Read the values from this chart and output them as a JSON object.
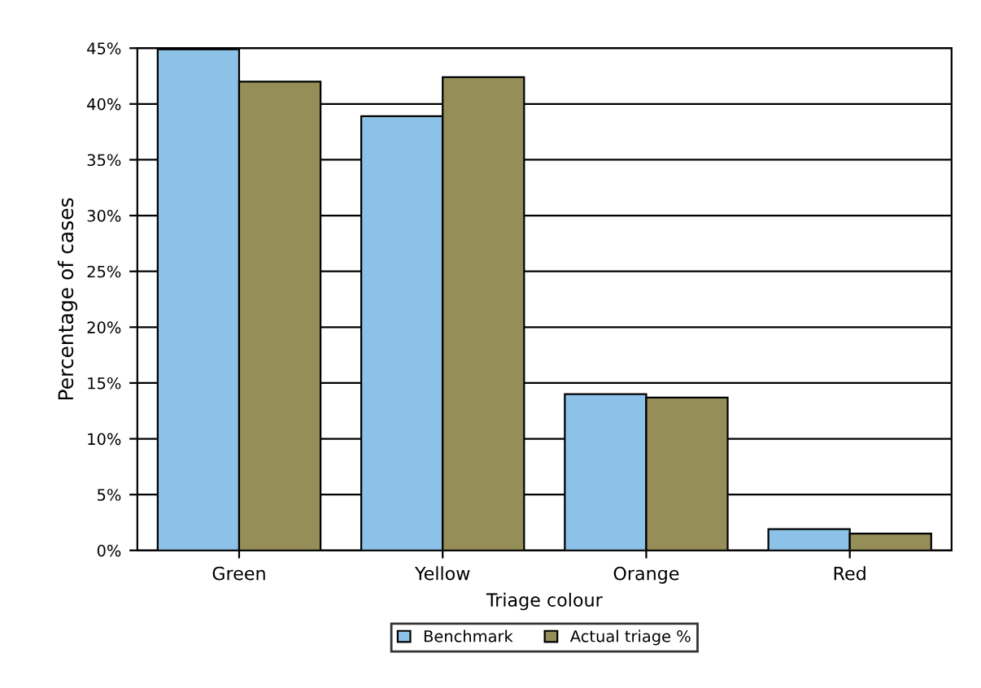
{
  "chart_data": {
    "type": "bar",
    "xlabel": "Triage colour",
    "ylabel": "Percentage of cases",
    "categories": [
      "Green",
      "Yellow",
      "Orange",
      "Red"
    ],
    "series": [
      {
        "name": "Benchmark",
        "color": "#8cc2e8",
        "values": [
          44.9,
          38.9,
          14.0,
          1.9
        ]
      },
      {
        "name": "Actual triage %",
        "color": "#968e58",
        "values": [
          42.0,
          42.4,
          13.7,
          1.5
        ]
      }
    ],
    "ylim": [
      0,
      45
    ],
    "yticks": [
      {
        "value": 0,
        "label": "0%"
      },
      {
        "value": 5,
        "label": "5%"
      },
      {
        "value": 10,
        "label": "10%"
      },
      {
        "value": 15,
        "label": "15%"
      },
      {
        "value": 20,
        "label": "20%"
      },
      {
        "value": 25,
        "label": "25%"
      },
      {
        "value": 30,
        "label": "30%"
      },
      {
        "value": 35,
        "label": "35%"
      },
      {
        "value": 40,
        "label": "40%"
      },
      {
        "value": 45,
        "label": "45%"
      }
    ],
    "grid": "y",
    "legend": "bottom"
  }
}
